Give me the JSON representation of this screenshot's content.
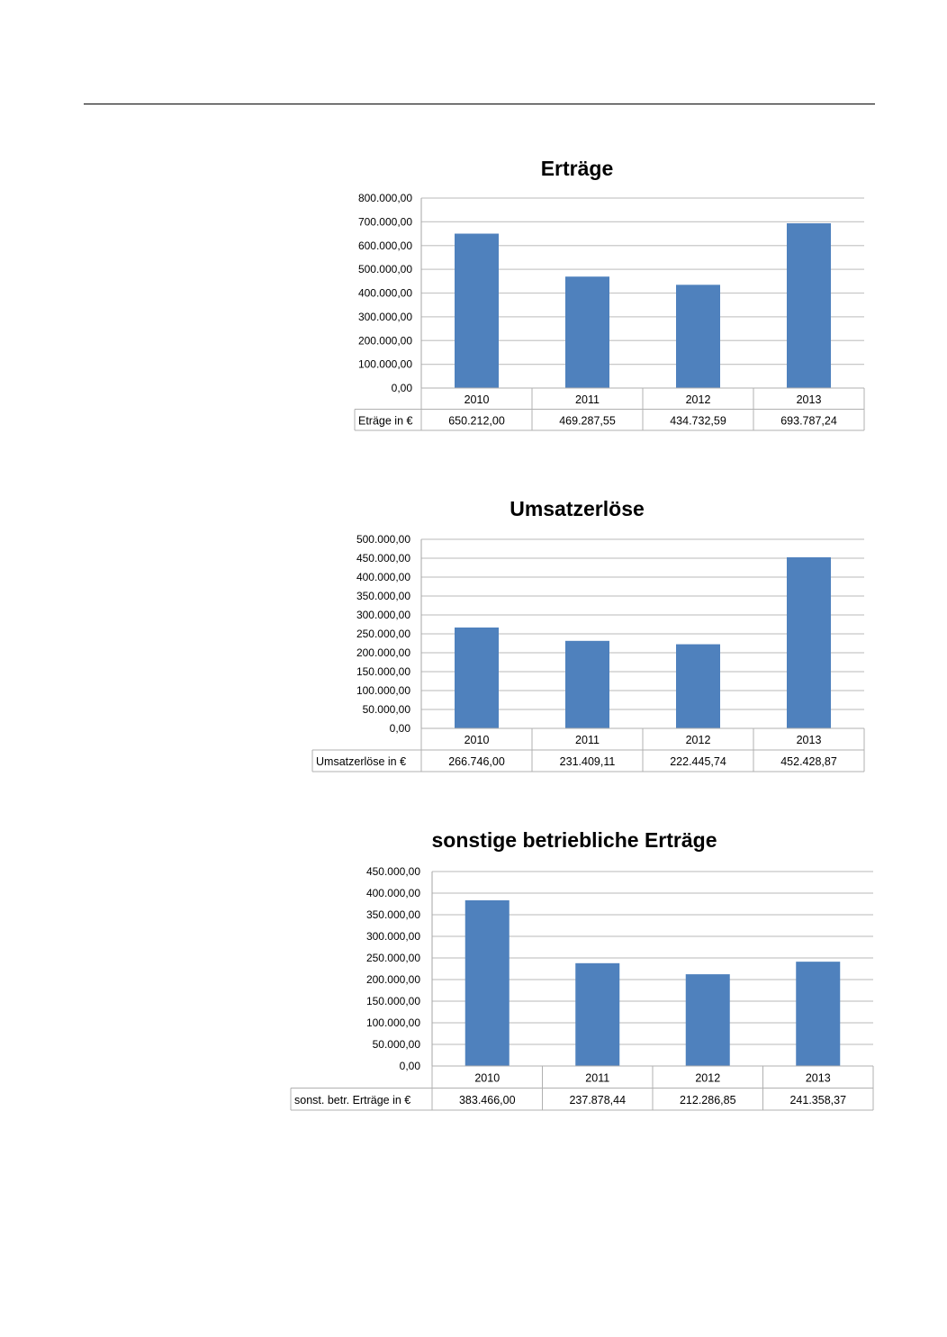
{
  "chart_data": [
    {
      "type": "bar",
      "title": "Erträge",
      "categories": [
        "2010",
        "2011",
        "2012",
        "2013"
      ],
      "series": [
        {
          "name": "Eträge in €",
          "values": [
            650212.0,
            469287.55,
            434732.59,
            693787.24
          ],
          "labels": [
            "650.212,00",
            "469.287,55",
            "434.732,59",
            "693.787,24"
          ]
        }
      ],
      "ylim": [
        0,
        800000
      ],
      "yticks": [
        "0,00",
        "100.000,00",
        "200.000,00",
        "300.000,00",
        "400.000,00",
        "500.000,00",
        "600.000,00",
        "700.000,00",
        "800.000,00"
      ],
      "grid": true,
      "legend": "data-table",
      "bar_color": "#4f81bd"
    },
    {
      "type": "bar",
      "title": "Umsatzerlöse",
      "categories": [
        "2010",
        "2011",
        "2012",
        "2013"
      ],
      "series": [
        {
          "name": "Umsatzerlöse in €",
          "values": [
            266746.0,
            231409.11,
            222445.74,
            452428.87
          ],
          "labels": [
            "266.746,00",
            "231.409,11",
            "222.445,74",
            "452.428,87"
          ]
        }
      ],
      "ylim": [
        0,
        500000
      ],
      "yticks": [
        "0,00",
        "50.000,00",
        "100.000,00",
        "150.000,00",
        "200.000,00",
        "250.000,00",
        "300.000,00",
        "350.000,00",
        "400.000,00",
        "450.000,00",
        "500.000,00"
      ],
      "grid": true,
      "legend": "data-table",
      "bar_color": "#4f81bd"
    },
    {
      "type": "bar",
      "title": "sonstige betriebliche Erträge",
      "categories": [
        "2010",
        "2011",
        "2012",
        "2013"
      ],
      "series": [
        {
          "name": "sonst. betr. Erträge in €",
          "values": [
            383466.0,
            237878.44,
            212286.85,
            241358.37
          ],
          "labels": [
            "383.466,00",
            "237.878,44",
            "212.286,85",
            "241.358,37"
          ]
        }
      ],
      "ylim": [
        0,
        450000
      ],
      "yticks": [
        "0,00",
        "50.000,00",
        "100.000,00",
        "150.000,00",
        "200.000,00",
        "250.000,00",
        "300.000,00",
        "350.000,00",
        "400.000,00",
        "450.000,00"
      ],
      "grid": true,
      "legend": "data-table",
      "bar_color": "#4f81bd"
    }
  ]
}
